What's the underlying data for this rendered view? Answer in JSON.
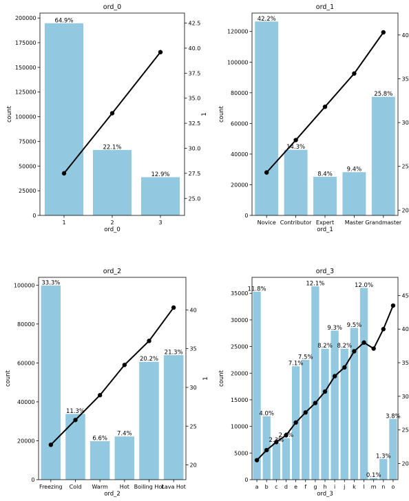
{
  "chart_data": [
    {
      "type": "bar",
      "title": "ord_0",
      "xlabel": "ord_0",
      "ylabel": "count",
      "y2label": "1",
      "categories": [
        "1",
        "2",
        "3"
      ],
      "values": [
        194700,
        66300,
        38700
      ],
      "pct_labels": [
        "64.9%",
        "22.1%",
        "12.9%"
      ],
      "ylim": [
        0,
        205000
      ],
      "yticks": [
        0,
        25000,
        50000,
        75000,
        100000,
        125000,
        150000,
        175000,
        200000
      ],
      "line": {
        "values": [
          27.5,
          33.5,
          39.6
        ],
        "ylim": [
          23.3,
          43.5
        ],
        "yticks": [
          25.0,
          27.5,
          30.0,
          32.5,
          35.0,
          37.5,
          40.0,
          42.5
        ],
        "ytick_labels": [
          "25.0",
          "27.5",
          "30.0",
          "32.5",
          "35.0",
          "37.5",
          "40.0",
          "42.5"
        ]
      },
      "bar_color": "#92c9e0",
      "line_color": "#000000"
    },
    {
      "type": "bar",
      "title": "ord_1",
      "xlabel": "ord_1",
      "ylabel": "count",
      "y2label": "",
      "categories": [
        "Novice",
        "Contributor",
        "Expert",
        "Master",
        "Grandmaster"
      ],
      "values": [
        126500,
        42800,
        25200,
        28200,
        77400
      ],
      "pct_labels": [
        "42.2%",
        "14.3%",
        "8.4%",
        "9.4%",
        "25.8%"
      ],
      "ylim": [
        0,
        132000
      ],
      "yticks": [
        0,
        20000,
        40000,
        60000,
        80000,
        100000,
        120000
      ],
      "line": {
        "values": [
          24.3,
          28.0,
          31.8,
          35.6,
          40.3
        ],
        "ylim": [
          19.4,
          42.5
        ],
        "yticks": [
          20,
          25,
          30,
          35,
          40
        ],
        "ytick_labels": [
          "20",
          "25",
          "30",
          "35",
          "40"
        ]
      },
      "bar_color": "#92c9e0",
      "line_color": "#000000"
    },
    {
      "type": "bar",
      "title": "ord_2",
      "xlabel": "ord_2",
      "ylabel": "count",
      "y2label": "1",
      "categories": [
        "Freezing",
        "Cold",
        "Warm",
        "Hot",
        "Boiling Hot",
        "Lava Hot"
      ],
      "values": [
        99800,
        33800,
        19800,
        22200,
        60600,
        64000
      ],
      "pct_labels": [
        "33.3%",
        "11.3%",
        "6.6%",
        "7.4%",
        "20.2%",
        "21.3%"
      ],
      "ylim": [
        0,
        104000
      ],
      "yticks": [
        0,
        20000,
        40000,
        60000,
        80000,
        100000
      ],
      "line": {
        "values": [
          22.6,
          25.8,
          29.0,
          32.9,
          36.0,
          40.3
        ],
        "ylim": [
          18.1,
          44.2
        ],
        "yticks": [
          20,
          25,
          30,
          35,
          40
        ],
        "ytick_labels": [
          "20",
          "25",
          "30",
          "35",
          "40"
        ]
      },
      "bar_color": "#92c9e0",
      "line_color": "#000000"
    },
    {
      "type": "bar",
      "title": "ord_3",
      "xlabel": "ord_3",
      "ylabel": "count",
      "y2label": "",
      "categories": [
        "a",
        "b",
        "c",
        "d",
        "e",
        "f",
        "g",
        "h",
        "i",
        "j",
        "k",
        "l",
        "m",
        "n",
        "o"
      ],
      "values": [
        35300,
        11900,
        6900,
        7800,
        21300,
        22500,
        36300,
        24600,
        28000,
        24600,
        28500,
        36000,
        300,
        3900,
        11400
      ],
      "pct_labels": [
        "11.8%",
        "4.0%",
        "2.3%",
        "2.6%",
        "7.1%",
        "7.5%",
        "12.1%",
        "8.2%",
        "9.3%",
        "8.2%",
        "9.5%",
        "12.0%",
        "0.1%",
        "1.3%",
        "3.8%"
      ],
      "ylim": [
        0,
        38000
      ],
      "yticks": [
        0,
        5000,
        10000,
        15000,
        20000,
        25000,
        30000,
        35000
      ],
      "line": {
        "values": [
          20.5,
          22.0,
          23.2,
          24.2,
          26.1,
          27.6,
          29.0,
          30.7,
          33.0,
          34.3,
          36.7,
          38.0,
          37.1,
          40.0,
          43.5
        ],
        "ylim": [
          17.6,
          47.7
        ],
        "yticks": [
          20,
          25,
          30,
          35,
          40,
          45
        ],
        "ytick_labels": [
          "20",
          "25",
          "30",
          "35",
          "40",
          "45"
        ]
      },
      "bar_color": "#92c9e0",
      "line_color": "#000000"
    }
  ]
}
